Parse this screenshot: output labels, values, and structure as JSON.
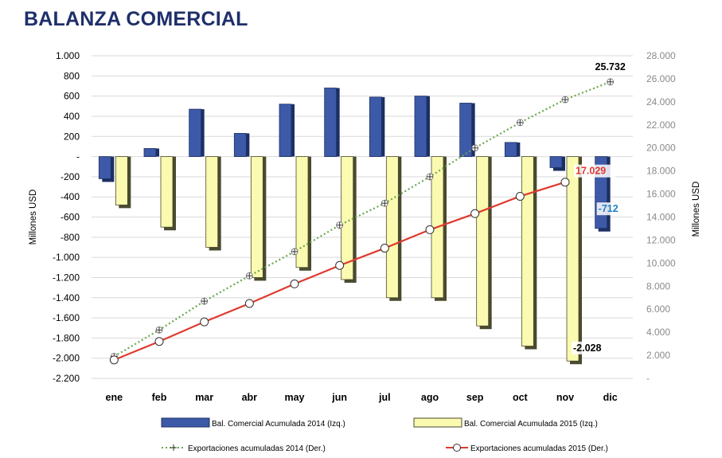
{
  "page": {
    "title": "BALANZA COMERCIAL"
  },
  "colors": {
    "bar2014": "#3d5aa8",
    "bar2014_dark": "#1d2f63",
    "bar2015": "#fafab0",
    "bar2015_dark": "#4a4a30",
    "line2014": "#6aa84f",
    "line2015": "#e03a2e",
    "grid": "#d9d9d9",
    "title": "#1f2f6b",
    "ann_red": "#e03a2e",
    "ann_blue": "#1f7fc2",
    "ann_black": "#000000"
  },
  "chart_data": {
    "type": "bar",
    "categories": [
      "ene",
      "feb",
      "mar",
      "abr",
      "may",
      "jun",
      "jul",
      "ago",
      "sep",
      "oct",
      "nov",
      "dic"
    ],
    "ylabel": "Millones USD",
    "ylabel_right": "Millones USD",
    "ylim": [
      -2200,
      1000
    ],
    "ylim_right": [
      0,
      28000
    ],
    "yticks": [
      "1.000",
      "800",
      "600",
      "400",
      "200",
      "-",
      "-200",
      "-400",
      "-600",
      "-800",
      "-1.000",
      "-1.200",
      "-1.400",
      "-1.600",
      "-1.800",
      "-2.000",
      "-2.200"
    ],
    "yticks_right": [
      "28.000",
      "26.000",
      "24.000",
      "22.000",
      "20.000",
      "18.000",
      "16.000",
      "14.000",
      "12.000",
      "10.000",
      "8.000",
      "6.000",
      "4.000",
      "2.000",
      "-"
    ],
    "grid": true,
    "legend_position": "bottom",
    "series": [
      {
        "name": "Bal. Comercial Acumulada 2014 (Izq.)",
        "kind": "bar",
        "axis": "left",
        "values": [
          -220,
          80,
          470,
          230,
          520,
          680,
          590,
          600,
          530,
          140,
          -110,
          -712
        ]
      },
      {
        "name": "Bal. Comercial Acumulada 2015 (Izq.)",
        "kind": "bar",
        "axis": "left",
        "values": [
          -480,
          -700,
          -900,
          -1200,
          -1100,
          -1220,
          -1400,
          -1400,
          -1680,
          -1880,
          -2028,
          null
        ]
      },
      {
        "name": "Exportaciones acumuladas 2014 (Der.)",
        "kind": "line",
        "axis": "right",
        "values": [
          1900,
          4200,
          6700,
          8900,
          11000,
          13300,
          15200,
          17500,
          20000,
          22200,
          24200,
          25732
        ]
      },
      {
        "name": "Exportaciones acumuladas 2015 (Der.)",
        "kind": "line",
        "axis": "right",
        "values": [
          1600,
          3200,
          4900,
          6500,
          8200,
          9800,
          11300,
          12900,
          14300,
          15800,
          17029,
          null
        ]
      }
    ],
    "annotations": [
      {
        "text": "25.732",
        "series": 2,
        "index": 11,
        "color": "ann_black"
      },
      {
        "text": "17.029",
        "series": 3,
        "index": 10,
        "color": "ann_red"
      },
      {
        "text": "-712",
        "series": 0,
        "index": 11,
        "color": "ann_blue"
      },
      {
        "text": "-2.028",
        "series": 1,
        "index": 10,
        "color": "ann_black"
      }
    ]
  }
}
